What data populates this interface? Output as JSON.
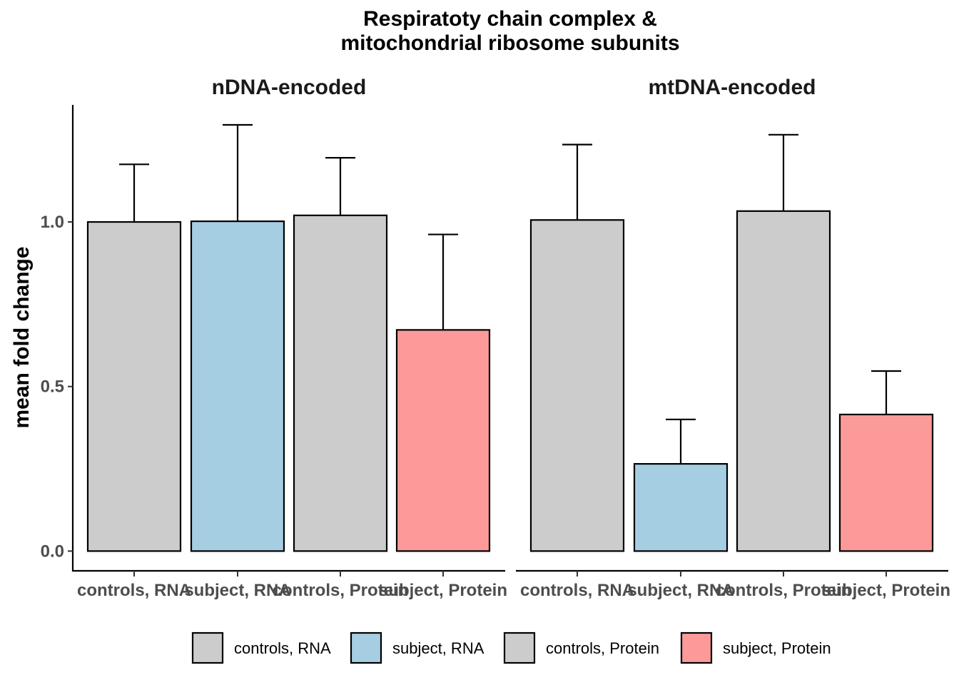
{
  "chart_data": {
    "type": "bar",
    "title": "Respiratoty chain complex &\nmitochondrial ribosome subunits",
    "xlabel": "",
    "ylabel": "mean fold change",
    "ylim": [
      -0.06,
      1.36
    ],
    "yticks": [
      0.0,
      0.5,
      1.0
    ],
    "ytick_labels": [
      "0.0",
      "0.5",
      "1.0"
    ],
    "grid": false,
    "legend_position": "bottom",
    "categories": [
      "controls, RNA",
      "subject, RNA",
      "controls, Protein",
      "subject, Protein"
    ],
    "colors": {
      "controls, RNA": "#cccccc",
      "subject, RNA": "#a6cee3",
      "controls, Protein": "#cccccc",
      "subject, Protein": "#fb9a99"
    },
    "panels": [
      {
        "name": "nDNA-encoded",
        "values": [
          1.0,
          1.002,
          1.02,
          0.672
        ],
        "error_upper": [
          1.175,
          1.295,
          1.195,
          0.962
        ]
      },
      {
        "name": "mtDNA-encoded",
        "values": [
          1.006,
          0.265,
          1.033,
          0.415
        ],
        "error_upper": [
          1.235,
          0.4,
          1.265,
          0.547
        ]
      }
    ],
    "legend": [
      "controls, RNA",
      "subject, RNA",
      "controls, Protein",
      "subject, Protein"
    ]
  }
}
